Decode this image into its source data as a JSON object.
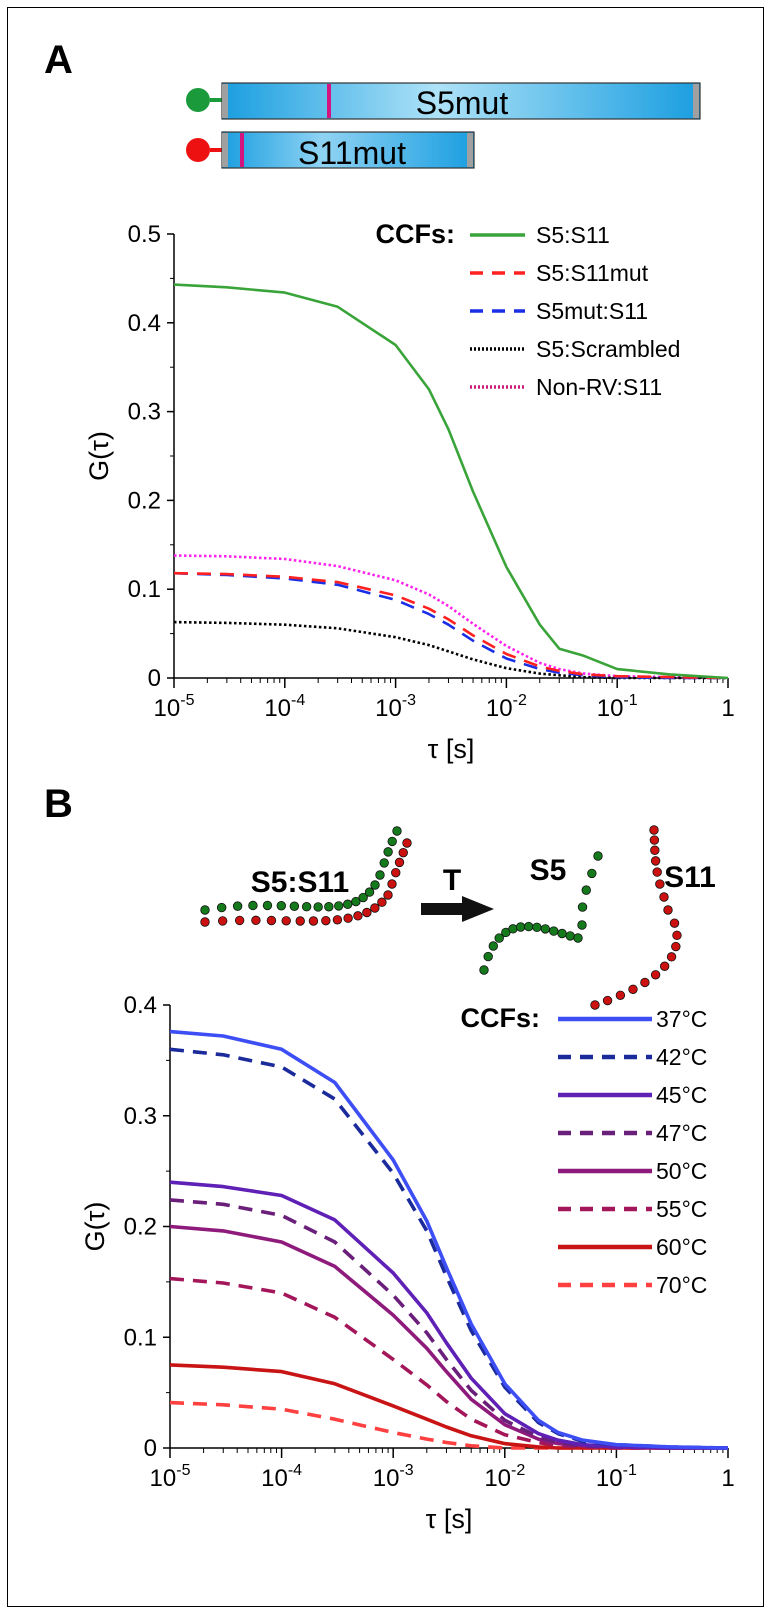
{
  "panels": {
    "a": {
      "letter": "A",
      "constructs": {
        "long": "S5mut",
        "short": "S11mut"
      }
    },
    "b": {
      "letter": "B",
      "diagram": {
        "duplex": "S5:S11",
        "arrow": "T",
        "strand_green": "S5",
        "strand_red": "S11"
      }
    }
  },
  "chart_data": [
    {
      "type": "line",
      "xscale": "log",
      "xlim": [
        1e-05,
        1
      ],
      "ylim": [
        0,
        0.5
      ],
      "xlabel": "τ [s]",
      "ylabel": "G(τ)",
      "xticks": [
        {
          "base": "10",
          "exp": "-5"
        },
        {
          "base": "10",
          "exp": "-4"
        },
        {
          "base": "10",
          "exp": "-3"
        },
        {
          "base": "10",
          "exp": "-2"
        },
        {
          "base": "10",
          "exp": "-1"
        },
        {
          "base": "1",
          "exp": ""
        }
      ],
      "yticks": [
        "0",
        "0.1",
        "0.2",
        "0.3",
        "0.4",
        "0.5"
      ],
      "yticks_values": [
        0,
        0.1,
        0.2,
        0.3,
        0.4,
        0.5
      ],
      "legend_title": "CCFs:",
      "legend_position": "top-right",
      "x": [
        1e-05,
        3e-05,
        0.0001,
        0.0003,
        0.001,
        0.002,
        0.003,
        0.005,
        0.01,
        0.02,
        0.03,
        0.05,
        0.1,
        0.3,
        1
      ],
      "series": [
        {
          "name": "S5:S11",
          "color": "#3aa43a",
          "dash": "solid",
          "values": [
            0.443,
            0.44,
            0.434,
            0.418,
            0.375,
            0.325,
            0.28,
            0.21,
            0.125,
            0.06,
            0.033,
            0.025,
            0.01,
            0.004,
            0.0
          ]
        },
        {
          "name": "S5:S11mut",
          "color": "#ff2020",
          "dash": "dashed",
          "values": [
            0.118,
            0.117,
            0.114,
            0.108,
            0.093,
            0.078,
            0.066,
            0.048,
            0.027,
            0.013,
            0.008,
            0.004,
            0.002,
            0.001,
            0.0
          ]
        },
        {
          "name": "S5mut:S11",
          "color": "#1a2ee6",
          "dash": "dashed",
          "values": [
            0.118,
            0.116,
            0.112,
            0.105,
            0.088,
            0.072,
            0.06,
            0.042,
            0.022,
            0.01,
            0.006,
            0.003,
            0.001,
            0.0,
            0.0
          ]
        },
        {
          "name": "S5:Scrambled",
          "color": "#000000",
          "dash": "dotted",
          "values": [
            0.063,
            0.062,
            0.06,
            0.056,
            0.046,
            0.037,
            0.03,
            0.021,
            0.011,
            0.005,
            0.003,
            0.001,
            0.0,
            0.0,
            0.0
          ]
        },
        {
          "name": "Non-RV:S11",
          "color": "#ff22ee",
          "dash": "dotted",
          "values": [
            0.138,
            0.137,
            0.134,
            0.126,
            0.11,
            0.094,
            0.081,
            0.061,
            0.036,
            0.017,
            0.01,
            0.005,
            0.002,
            0.001,
            0.0
          ]
        }
      ],
      "legend_swatch_colors": [
        "#3aa43a",
        "#ff2020",
        "#1a2ee6",
        "#000000",
        "#cc1b7e"
      ]
    },
    {
      "type": "line",
      "xscale": "log",
      "xlim": [
        1e-05,
        1
      ],
      "ylim": [
        0,
        0.4
      ],
      "xlabel": "τ [s]",
      "ylabel": "G(τ)",
      "xticks": [
        {
          "base": "10",
          "exp": "-5"
        },
        {
          "base": "10",
          "exp": "-4"
        },
        {
          "base": "10",
          "exp": "-3"
        },
        {
          "base": "10",
          "exp": "-2"
        },
        {
          "base": "10",
          "exp": "-1"
        },
        {
          "base": "1",
          "exp": ""
        }
      ],
      "yticks": [
        "0",
        "0.1",
        "0.2",
        "0.3",
        "0.4"
      ],
      "yticks_values": [
        0,
        0.1,
        0.2,
        0.3,
        0.4
      ],
      "legend_title": "CCFs:",
      "legend_position": "top-right",
      "x": [
        1e-05,
        3e-05,
        0.0001,
        0.0003,
        0.001,
        0.002,
        0.003,
        0.005,
        0.01,
        0.02,
        0.03,
        0.05,
        0.1,
        0.3,
        1
      ],
      "series": [
        {
          "name": "37°C",
          "color": "#3d4ef5",
          "dash": "solid",
          "values": [
            0.376,
            0.372,
            0.36,
            0.33,
            0.26,
            0.205,
            0.163,
            0.112,
            0.058,
            0.025,
            0.014,
            0.007,
            0.003,
            0.001,
            0.0
          ]
        },
        {
          "name": "42°C",
          "color": "#1b2b9c",
          "dash": "dashed",
          "values": [
            0.36,
            0.355,
            0.344,
            0.315,
            0.248,
            0.196,
            0.155,
            0.106,
            0.055,
            0.023,
            0.013,
            0.006,
            0.003,
            0.001,
            0.0
          ]
        },
        {
          "name": "45°C",
          "color": "#5f20b5",
          "dash": "solid",
          "values": [
            0.24,
            0.236,
            0.228,
            0.206,
            0.158,
            0.122,
            0.095,
            0.063,
            0.031,
            0.013,
            0.007,
            0.003,
            0.001,
            0.0,
            0.0
          ]
        },
        {
          "name": "47°C",
          "color": "#6a1f7a",
          "dash": "dashed",
          "values": [
            0.224,
            0.22,
            0.21,
            0.186,
            0.138,
            0.104,
            0.08,
            0.052,
            0.025,
            0.01,
            0.005,
            0.002,
            0.001,
            0.0,
            0.0
          ]
        },
        {
          "name": "50°C",
          "color": "#8e1b7c",
          "dash": "solid",
          "values": [
            0.2,
            0.196,
            0.186,
            0.164,
            0.12,
            0.09,
            0.069,
            0.044,
            0.021,
            0.008,
            0.004,
            0.002,
            0.001,
            0.0,
            0.0
          ]
        },
        {
          "name": "55°C",
          "color": "#a3165a",
          "dash": "dashed",
          "values": [
            0.153,
            0.149,
            0.14,
            0.118,
            0.08,
            0.057,
            0.042,
            0.026,
            0.012,
            0.005,
            0.002,
            0.001,
            0.0,
            0.0,
            0.0
          ]
        },
        {
          "name": "60°C",
          "color": "#c81414",
          "dash": "solid",
          "values": [
            0.075,
            0.073,
            0.069,
            0.058,
            0.038,
            0.026,
            0.019,
            0.011,
            0.004,
            0.001,
            0.0,
            0.0,
            0.0,
            0.0,
            0.0
          ]
        },
        {
          "name": "70°C",
          "color": "#ff4040",
          "dash": "dashed",
          "values": [
            0.041,
            0.039,
            0.035,
            0.026,
            0.014,
            0.008,
            0.005,
            0.002,
            0.0,
            0.0,
            0.0,
            0.0,
            0.0,
            0.0,
            0.0
          ]
        }
      ]
    }
  ],
  "colors": {
    "bar_blue": "#1a9ee0",
    "bar_light": "#aee2f7",
    "bar_mark": "#d4157f",
    "dot_green": "#1a9a3a",
    "dot_red": "#ee1111",
    "strand_green": "#157a1c",
    "strand_red": "#cc1111"
  }
}
